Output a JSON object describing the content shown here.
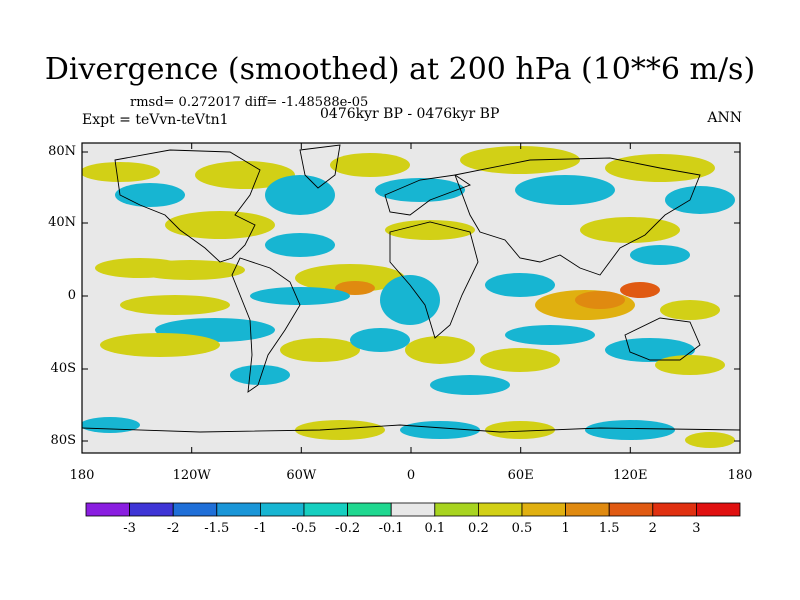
{
  "title": "Divergence (smoothed) at 200 hPa (10**6 m/s)",
  "stats": "rmsd= 0.272017 diff= -1.48588e-05",
  "experiment": "Expt = teVvn-teVtn1",
  "period": "0476kyr BP - 0476kyr BP",
  "season": "ANN",
  "lat_labels": [
    "80N",
    "40N",
    "0",
    "40S",
    "80S"
  ],
  "lon_labels": [
    "180",
    "120W",
    "60W",
    "0",
    "60E",
    "120E",
    "180"
  ],
  "colorbar": {
    "labels": [
      "-3",
      "-2",
      "-1.5",
      "-1",
      "-0.5",
      "-0.2",
      "-0.1",
      "0.1",
      "0.2",
      "0.5",
      "1",
      "1.5",
      "2",
      "3"
    ],
    "colors": [
      "#8a1ee0",
      "#3f35d6",
      "#1f6fd8",
      "#1a96d8",
      "#17b5d2",
      "#16cfc0",
      "#20d890",
      "#e8e8e8",
      "#a8d420",
      "#d2d016",
      "#e0b010",
      "#e08a10",
      "#e05a12",
      "#e03010",
      "#e01010"
    ]
  },
  "colors": {
    "land_outline": "#000000",
    "background": "#e8e8e8"
  }
}
